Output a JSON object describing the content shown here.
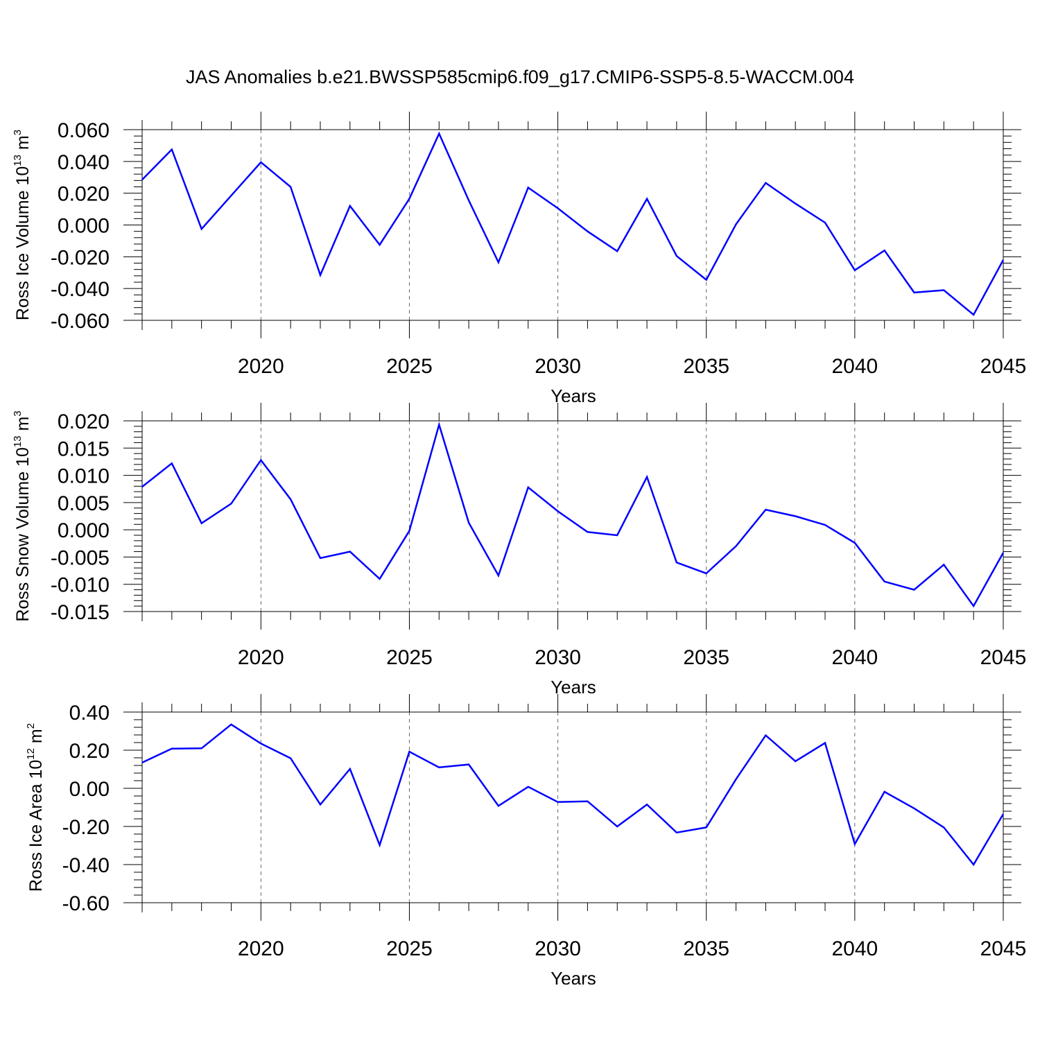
{
  "figure": {
    "title": "JAS Anomalies b.e21.BWSSP585cmip6.f09_g17.CMIP6-SSP5-8.5-WACCM.004",
    "line_color": "#0000ff"
  },
  "chart_data": [
    {
      "type": "line",
      "title": "JAS Anomalies b.e21.BWSSP585cmip6.f09_g17.CMIP6-SSP5-8.5-WACCM.004",
      "xlabel": "Years",
      "ylabel": "Ross Ice Volume 10",
      "ylabel_sup": "13",
      "ylabel_unit": "m",
      "ylabel_unit_sup": "3",
      "xlim": [
        2016,
        2045
      ],
      "ylim": [
        -0.06,
        0.06
      ],
      "yticks": [
        -0.06,
        -0.04,
        -0.02,
        0.0,
        0.02,
        0.04,
        0.06
      ],
      "ytick_labels": [
        "-0.060",
        "-0.040",
        "-0.020",
        "0.000",
        "0.020",
        "0.040",
        "0.060"
      ],
      "xticks": [
        2020,
        2025,
        2030,
        2035,
        2040,
        2045
      ],
      "xtick_labels": [
        "2020",
        "2025",
        "2030",
        "2035",
        "2040",
        "2045"
      ],
      "x": [
        2016,
        2017,
        2018,
        2019,
        2020,
        2021,
        2022,
        2023,
        2024,
        2025,
        2026,
        2027,
        2028,
        2029,
        2030,
        2031,
        2032,
        2033,
        2034,
        2035,
        2036,
        2037,
        2038,
        2039,
        2040,
        2041,
        2042,
        2043,
        2044,
        2045
      ],
      "series": [
        {
          "name": "Ross Ice Volume",
          "values": [
            0.0285,
            0.0475,
            -0.0025,
            0.0185,
            0.0395,
            0.024,
            -0.0315,
            0.012,
            -0.0125,
            0.0165,
            0.0575,
            0.0155,
            -0.0235,
            0.0235,
            0.0105,
            -0.004,
            -0.0165,
            0.0165,
            -0.0195,
            -0.0345,
            0.0005,
            0.0265,
            0.0135,
            0.0015,
            -0.0285,
            -0.016,
            -0.0425,
            -0.041,
            -0.0565,
            -0.022
          ]
        }
      ]
    },
    {
      "type": "line",
      "xlabel": "Years",
      "ylabel": "Ross Snow Volume 10",
      "ylabel_sup": "13",
      "ylabel_unit": "m",
      "ylabel_unit_sup": "3",
      "xlim": [
        2016,
        2045
      ],
      "ylim": [
        -0.015,
        0.02
      ],
      "yticks": [
        -0.015,
        -0.01,
        -0.005,
        0.0,
        0.005,
        0.01,
        0.015,
        0.02
      ],
      "ytick_labels": [
        "-0.015",
        "-0.010",
        "-0.005",
        "0.000",
        "0.005",
        "0.010",
        "0.015",
        "0.020"
      ],
      "xticks": [
        2020,
        2025,
        2030,
        2035,
        2040,
        2045
      ],
      "xtick_labels": [
        "2020",
        "2025",
        "2030",
        "2035",
        "2040",
        "2045"
      ],
      "x": [
        2016,
        2017,
        2018,
        2019,
        2020,
        2021,
        2022,
        2023,
        2024,
        2025,
        2026,
        2027,
        2028,
        2029,
        2030,
        2031,
        2032,
        2033,
        2034,
        2035,
        2036,
        2037,
        2038,
        2039,
        2040,
        2041,
        2042,
        2043,
        2044,
        2045
      ],
      "series": [
        {
          "name": "Ross Snow Volume",
          "values": [
            0.0079,
            0.0122,
            0.0012,
            0.0048,
            0.0128,
            0.0056,
            -0.0052,
            -0.004,
            -0.009,
            -0.0002,
            0.0193,
            0.0013,
            -0.0084,
            0.0078,
            0.0034,
            -0.0004,
            -0.001,
            0.0097,
            -0.006,
            -0.008,
            -0.003,
            0.0037,
            0.0025,
            0.0009,
            -0.0024,
            -0.0095,
            -0.011,
            -0.0064,
            -0.014,
            -0.0042
          ]
        }
      ]
    },
    {
      "type": "line",
      "xlabel": "Years",
      "ylabel": "Ross Ice Area 10",
      "ylabel_sup": "12",
      "ylabel_unit": "m",
      "ylabel_unit_sup": "2",
      "xlim": [
        2016,
        2045
      ],
      "ylim": [
        -0.6,
        0.4
      ],
      "yticks": [
        -0.6,
        -0.4,
        -0.2,
        0.0,
        0.2,
        0.4
      ],
      "ytick_labels": [
        "-0.60",
        "-0.40",
        "-0.20",
        "0.00",
        "0.20",
        "0.40"
      ],
      "xticks": [
        2020,
        2025,
        2030,
        2035,
        2040,
        2045
      ],
      "xtick_labels": [
        "2020",
        "2025",
        "2030",
        "2035",
        "2040",
        "2045"
      ],
      "x": [
        2016,
        2017,
        2018,
        2019,
        2020,
        2021,
        2022,
        2023,
        2024,
        2025,
        2026,
        2027,
        2028,
        2029,
        2030,
        2031,
        2032,
        2033,
        2034,
        2035,
        2036,
        2037,
        2038,
        2039,
        2040,
        2041,
        2042,
        2043,
        2044,
        2045
      ],
      "series": [
        {
          "name": "Ross Ice Area",
          "values": [
            0.135,
            0.208,
            0.21,
            0.335,
            0.235,
            0.158,
            -0.085,
            0.102,
            -0.298,
            0.192,
            0.11,
            0.125,
            -0.092,
            0.008,
            -0.072,
            -0.068,
            -0.2,
            -0.085,
            -0.232,
            -0.205,
            0.048,
            0.278,
            0.142,
            0.238,
            -0.292,
            -0.018,
            -0.105,
            -0.205,
            -0.4,
            -0.135
          ]
        }
      ]
    }
  ]
}
